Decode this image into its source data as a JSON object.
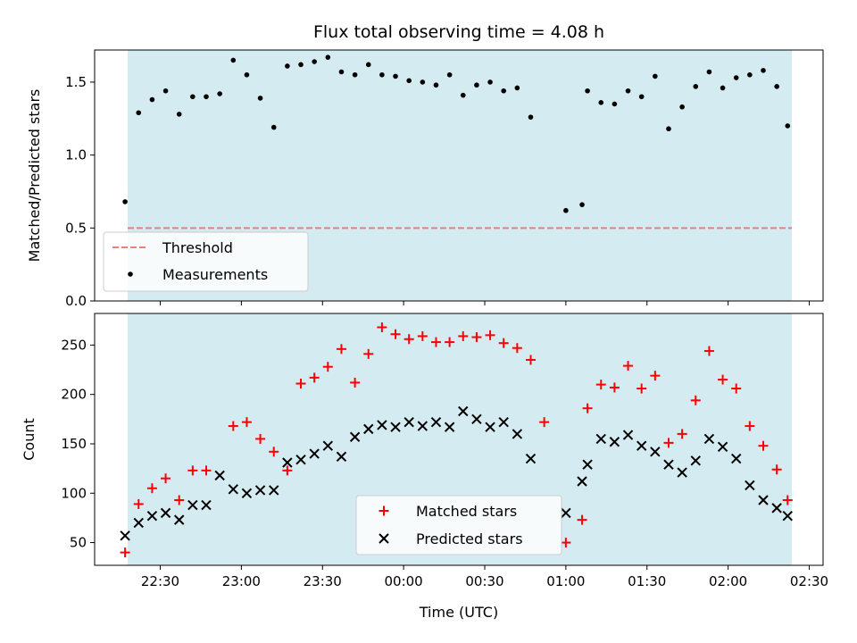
{
  "chart_data": [
    {
      "type": "scatter",
      "title": "Flux total observing time = 4.08 h",
      "ylabel": "Matched/Predicted stars",
      "xlabel": "",
      "ylim": [
        0,
        1.72
      ],
      "yticks": [
        "0.0",
        "0.5",
        "1.0",
        "1.5"
      ],
      "shaded_span_color": "#d4ebf1",
      "threshold": {
        "label": "Threshold",
        "value": 0.5,
        "color": "#f07c7c",
        "style": "dashed"
      },
      "measurements": {
        "label": "Measurements",
        "color": "#000000",
        "points": [
          [
            "22:17",
            0.68
          ],
          [
            "22:22",
            1.29
          ],
          [
            "22:27",
            1.38
          ],
          [
            "22:32",
            1.44
          ],
          [
            "22:37",
            1.28
          ],
          [
            "22:42",
            1.4
          ],
          [
            "22:47",
            1.4
          ],
          [
            "22:52",
            1.42
          ],
          [
            "22:57",
            1.65
          ],
          [
            "23:02",
            1.55
          ],
          [
            "23:07",
            1.39
          ],
          [
            "23:12",
            1.19
          ],
          [
            "23:17",
            1.61
          ],
          [
            "23:22",
            1.62
          ],
          [
            "23:27",
            1.64
          ],
          [
            "23:32",
            1.67
          ],
          [
            "23:37",
            1.57
          ],
          [
            "23:42",
            1.55
          ],
          [
            "23:47",
            1.62
          ],
          [
            "23:52",
            1.55
          ],
          [
            "23:57",
            1.54
          ],
          [
            "00:02",
            1.51
          ],
          [
            "00:07",
            1.5
          ],
          [
            "00:12",
            1.48
          ],
          [
            "00:17",
            1.55
          ],
          [
            "00:22",
            1.41
          ],
          [
            "00:27",
            1.48
          ],
          [
            "00:32",
            1.5
          ],
          [
            "00:37",
            1.44
          ],
          [
            "00:42",
            1.46
          ],
          [
            "00:47",
            1.26
          ],
          [
            "01:00",
            0.62
          ],
          [
            "01:06",
            0.66
          ],
          [
            "01:08",
            1.44
          ],
          [
            "01:13",
            1.36
          ],
          [
            "01:18",
            1.35
          ],
          [
            "01:23",
            1.44
          ],
          [
            "01:28",
            1.4
          ],
          [
            "01:33",
            1.54
          ],
          [
            "01:38",
            1.18
          ],
          [
            "01:43",
            1.33
          ],
          [
            "01:48",
            1.47
          ],
          [
            "01:53",
            1.57
          ],
          [
            "01:58",
            1.46
          ],
          [
            "02:03",
            1.53
          ],
          [
            "02:08",
            1.55
          ],
          [
            "02:13",
            1.58
          ],
          [
            "02:18",
            1.47
          ],
          [
            "02:22",
            1.2
          ]
        ]
      }
    },
    {
      "type": "scatter",
      "ylabel": "Count",
      "xlabel": "Time (UTC)",
      "ylim": [
        27,
        282
      ],
      "yticks": [
        "50",
        "100",
        "150",
        "200",
        "250"
      ],
      "xticks": [
        "22:30",
        "23:00",
        "23:30",
        "00:00",
        "00:30",
        "01:00",
        "01:30",
        "02:00",
        "02:30"
      ],
      "shaded_span_color": "#d4ebf1",
      "series": [
        {
          "name": "Matched stars",
          "marker": "plus",
          "color": "#ff0000",
          "points": [
            [
              "22:17",
              40
            ],
            [
              "22:22",
              89
            ],
            [
              "22:27",
              105
            ],
            [
              "22:32",
              115
            ],
            [
              "22:37",
              93
            ],
            [
              "22:42",
              123
            ],
            [
              "22:47",
              123
            ],
            [
              "22:57",
              168
            ],
            [
              "23:02",
              172
            ],
            [
              "23:07",
              155
            ],
            [
              "23:12",
              142
            ],
            [
              "23:17",
              123
            ],
            [
              "23:22",
              211
            ],
            [
              "23:27",
              217
            ],
            [
              "23:32",
              228
            ],
            [
              "23:37",
              246
            ],
            [
              "23:42",
              212
            ],
            [
              "23:47",
              241
            ],
            [
              "23:52",
              268
            ],
            [
              "23:57",
              261
            ],
            [
              "00:02",
              256
            ],
            [
              "00:07",
              259
            ],
            [
              "00:12",
              253
            ],
            [
              "00:17",
              253
            ],
            [
              "00:22",
              259
            ],
            [
              "00:27",
              258
            ],
            [
              "00:32",
              260
            ],
            [
              "00:37",
              252
            ],
            [
              "00:42",
              247
            ],
            [
              "00:47",
              235
            ],
            [
              "00:52",
              172
            ],
            [
              "01:00",
              50
            ],
            [
              "01:06",
              73
            ],
            [
              "01:08",
              186
            ],
            [
              "01:13",
              210
            ],
            [
              "01:18",
              207
            ],
            [
              "01:23",
              229
            ],
            [
              "01:28",
              206
            ],
            [
              "01:33",
              219
            ],
            [
              "01:38",
              151
            ],
            [
              "01:43",
              160
            ],
            [
              "01:48",
              194
            ],
            [
              "01:53",
              244
            ],
            [
              "01:58",
              215
            ],
            [
              "02:03",
              206
            ],
            [
              "02:08",
              168
            ],
            [
              "02:13",
              148
            ],
            [
              "02:18",
              124
            ],
            [
              "02:22",
              93
            ]
          ]
        },
        {
          "name": "Predicted stars",
          "marker": "x",
          "color": "#000000",
          "points": [
            [
              "22:17",
              57
            ],
            [
              "22:22",
              70
            ],
            [
              "22:27",
              77
            ],
            [
              "22:32",
              80
            ],
            [
              "22:37",
              73
            ],
            [
              "22:42",
              88
            ],
            [
              "22:47",
              88
            ],
            [
              "22:52",
              118
            ],
            [
              "22:57",
              104
            ],
            [
              "23:02",
              100
            ],
            [
              "23:07",
              103
            ],
            [
              "23:12",
              103
            ],
            [
              "23:17",
              131
            ],
            [
              "23:22",
              134
            ],
            [
              "23:27",
              140
            ],
            [
              "23:32",
              148
            ],
            [
              "23:37",
              137
            ],
            [
              "23:42",
              157
            ],
            [
              "23:47",
              165
            ],
            [
              "23:52",
              169
            ],
            [
              "23:57",
              167
            ],
            [
              "00:02",
              172
            ],
            [
              "00:07",
              168
            ],
            [
              "00:12",
              172
            ],
            [
              "00:17",
              167
            ],
            [
              "00:22",
              183
            ],
            [
              "00:27",
              175
            ],
            [
              "00:32",
              167
            ],
            [
              "00:37",
              172
            ],
            [
              "00:42",
              160
            ],
            [
              "00:47",
              135
            ],
            [
              "01:00",
              80
            ],
            [
              "01:06",
              112
            ],
            [
              "01:08",
              129
            ],
            [
              "01:13",
              155
            ],
            [
              "01:18",
              152
            ],
            [
              "01:23",
              159
            ],
            [
              "01:28",
              148
            ],
            [
              "01:33",
              142
            ],
            [
              "01:38",
              129
            ],
            [
              "01:43",
              121
            ],
            [
              "01:48",
              133
            ],
            [
              "01:53",
              155
            ],
            [
              "01:58",
              147
            ],
            [
              "02:03",
              135
            ],
            [
              "02:08",
              108
            ],
            [
              "02:13",
              93
            ],
            [
              "02:18",
              85
            ],
            [
              "02:22",
              77
            ]
          ]
        }
      ]
    }
  ]
}
